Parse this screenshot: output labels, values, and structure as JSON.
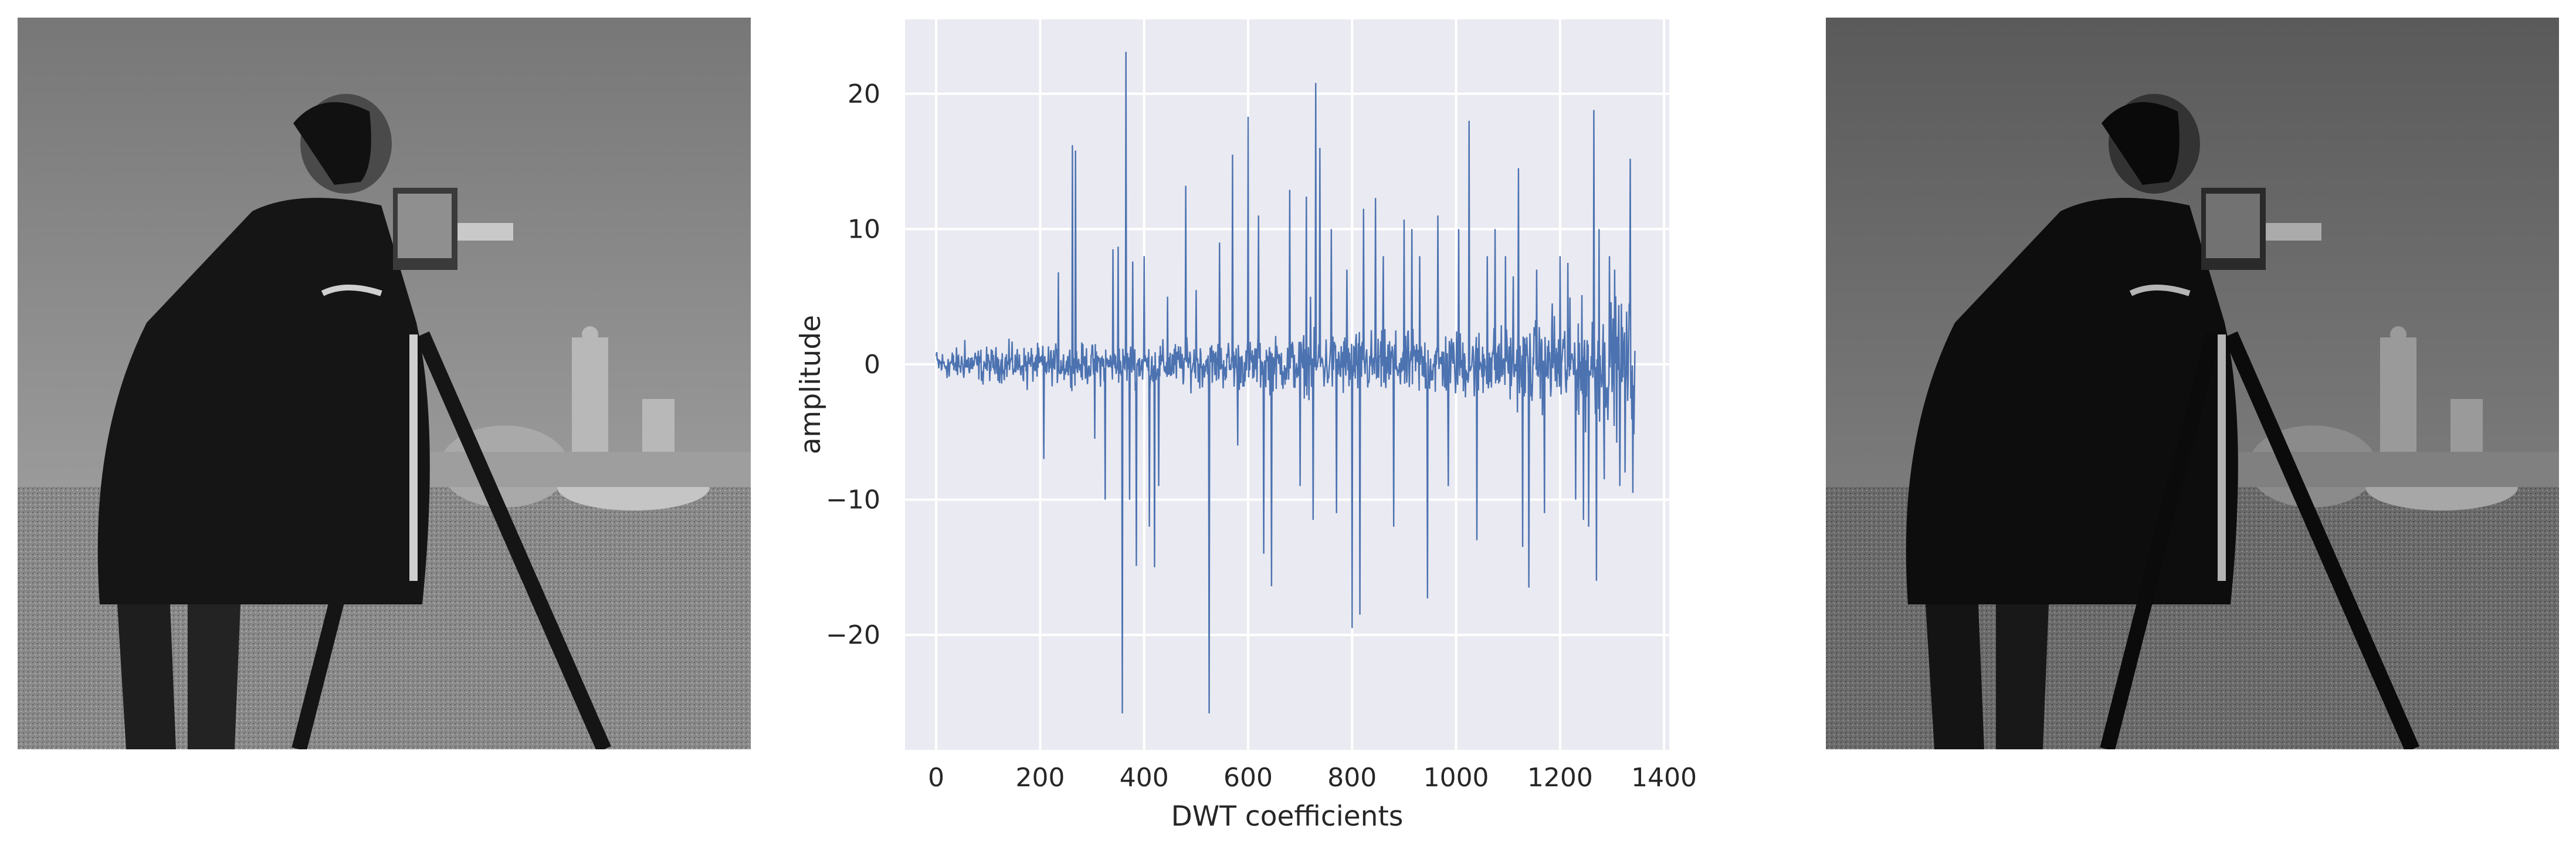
{
  "figure": {
    "left_image": {
      "icon": "photo-man-with-camera-grayscale",
      "tone": "#767676"
    },
    "right_image": {
      "icon": "photo-man-with-camera-grayscale-reconstructed",
      "tone": "#5c5c5c"
    }
  },
  "chart_data": {
    "type": "line",
    "title": "",
    "xlabel": "DWT coefficients",
    "ylabel": "amplitude",
    "xlim": [
      -60,
      1410
    ],
    "ylim": [
      -28.5,
      25.5
    ],
    "xticks": [
      0,
      200,
      400,
      600,
      800,
      1000,
      1200,
      1400
    ],
    "xtick_labels": [
      "0",
      "200",
      "400",
      "600",
      "800",
      "1000",
      "1200",
      "1400"
    ],
    "yticks": [
      -20,
      -10,
      0,
      10,
      20
    ],
    "ytick_labels": [
      "−20",
      "−10",
      "0",
      "10",
      "20"
    ],
    "grid": true,
    "background": "#eaeaf2",
    "line_color": "#4c72b0",
    "n_points": 1345,
    "spikes": [
      {
        "x": 0,
        "y": 0.6
      },
      {
        "x": 25,
        "y": -0.9
      },
      {
        "x": 55,
        "y": 1.8
      },
      {
        "x": 90,
        "y": -1.5
      },
      {
        "x": 140,
        "y": 1.9
      },
      {
        "x": 175,
        "y": -1.9
      },
      {
        "x": 207,
        "y": -7.0
      },
      {
        "x": 235,
        "y": 6.8
      },
      {
        "x": 262,
        "y": 16.2
      },
      {
        "x": 268,
        "y": 15.8
      },
      {
        "x": 305,
        "y": -5.5
      },
      {
        "x": 325,
        "y": -10.0
      },
      {
        "x": 340,
        "y": 8.5
      },
      {
        "x": 350,
        "y": 8.7
      },
      {
        "x": 358,
        "y": -25.8
      },
      {
        "x": 365,
        "y": 23.1
      },
      {
        "x": 372,
        "y": -10.0
      },
      {
        "x": 378,
        "y": 7.6
      },
      {
        "x": 385,
        "y": -14.9
      },
      {
        "x": 400,
        "y": 8.0
      },
      {
        "x": 410,
        "y": -12.0
      },
      {
        "x": 420,
        "y": -15.0
      },
      {
        "x": 428,
        "y": -9.0
      },
      {
        "x": 445,
        "y": 5.0
      },
      {
        "x": 480,
        "y": 13.2
      },
      {
        "x": 500,
        "y": 5.5
      },
      {
        "x": 525,
        "y": -25.8
      },
      {
        "x": 545,
        "y": 9.0
      },
      {
        "x": 570,
        "y": 15.5
      },
      {
        "x": 580,
        "y": -6.0
      },
      {
        "x": 600,
        "y": 18.3
      },
      {
        "x": 620,
        "y": 11.0
      },
      {
        "x": 630,
        "y": -14.0
      },
      {
        "x": 645,
        "y": -16.4
      },
      {
        "x": 680,
        "y": 12.9
      },
      {
        "x": 700,
        "y": -9.0
      },
      {
        "x": 712,
        "y": 12.4
      },
      {
        "x": 720,
        "y": 5.0
      },
      {
        "x": 725,
        "y": -11.5
      },
      {
        "x": 730,
        "y": 20.8
      },
      {
        "x": 738,
        "y": 16.0
      },
      {
        "x": 760,
        "y": 10.0
      },
      {
        "x": 770,
        "y": -11.0
      },
      {
        "x": 790,
        "y": 7.0
      },
      {
        "x": 800,
        "y": -19.5
      },
      {
        "x": 815,
        "y": -18.5
      },
      {
        "x": 822,
        "y": 11.5
      },
      {
        "x": 845,
        "y": 12.3
      },
      {
        "x": 860,
        "y": 8.0
      },
      {
        "x": 880,
        "y": -12.0
      },
      {
        "x": 900,
        "y": 10.7
      },
      {
        "x": 915,
        "y": 10.0
      },
      {
        "x": 930,
        "y": 8.0
      },
      {
        "x": 945,
        "y": -17.3
      },
      {
        "x": 965,
        "y": 11.0
      },
      {
        "x": 985,
        "y": -9.0
      },
      {
        "x": 1005,
        "y": 10.0
      },
      {
        "x": 1025,
        "y": 18.0
      },
      {
        "x": 1040,
        "y": -13.0
      },
      {
        "x": 1060,
        "y": 8.0
      },
      {
        "x": 1075,
        "y": 10.0
      },
      {
        "x": 1095,
        "y": 8.0
      },
      {
        "x": 1110,
        "y": 6.5
      },
      {
        "x": 1120,
        "y": 14.5
      },
      {
        "x": 1128,
        "y": -13.5
      },
      {
        "x": 1140,
        "y": -16.5
      },
      {
        "x": 1155,
        "y": 7.0
      },
      {
        "x": 1170,
        "y": -11.0
      },
      {
        "x": 1185,
        "y": 4.5
      },
      {
        "x": 1200,
        "y": 8.0
      },
      {
        "x": 1215,
        "y": 7.5
      },
      {
        "x": 1230,
        "y": -10.0
      },
      {
        "x": 1245,
        "y": -11.5
      },
      {
        "x": 1255,
        "y": -12.0
      },
      {
        "x": 1265,
        "y": 18.8
      },
      {
        "x": 1270,
        "y": -16.0
      },
      {
        "x": 1275,
        "y": 10.0
      },
      {
        "x": 1285,
        "y": -8.5
      },
      {
        "x": 1295,
        "y": 8.0
      },
      {
        "x": 1305,
        "y": 7.0
      },
      {
        "x": 1315,
        "y": -9.0
      },
      {
        "x": 1325,
        "y": -8.0
      },
      {
        "x": 1335,
        "y": 15.2
      },
      {
        "x": 1340,
        "y": -9.5
      },
      {
        "x": 1344,
        "y": 1.0
      }
    ],
    "noise_envelope": [
      {
        "x": 0,
        "amp": 1.6
      },
      {
        "x": 200,
        "amp": 2.0
      },
      {
        "x": 400,
        "amp": 2.3
      },
      {
        "x": 600,
        "amp": 2.7
      },
      {
        "x": 800,
        "amp": 3.5
      },
      {
        "x": 1000,
        "amp": 3.6
      },
      {
        "x": 1150,
        "amp": 4.4
      },
      {
        "x": 1250,
        "amp": 6.5
      },
      {
        "x": 1345,
        "amp": 7.0
      }
    ]
  }
}
